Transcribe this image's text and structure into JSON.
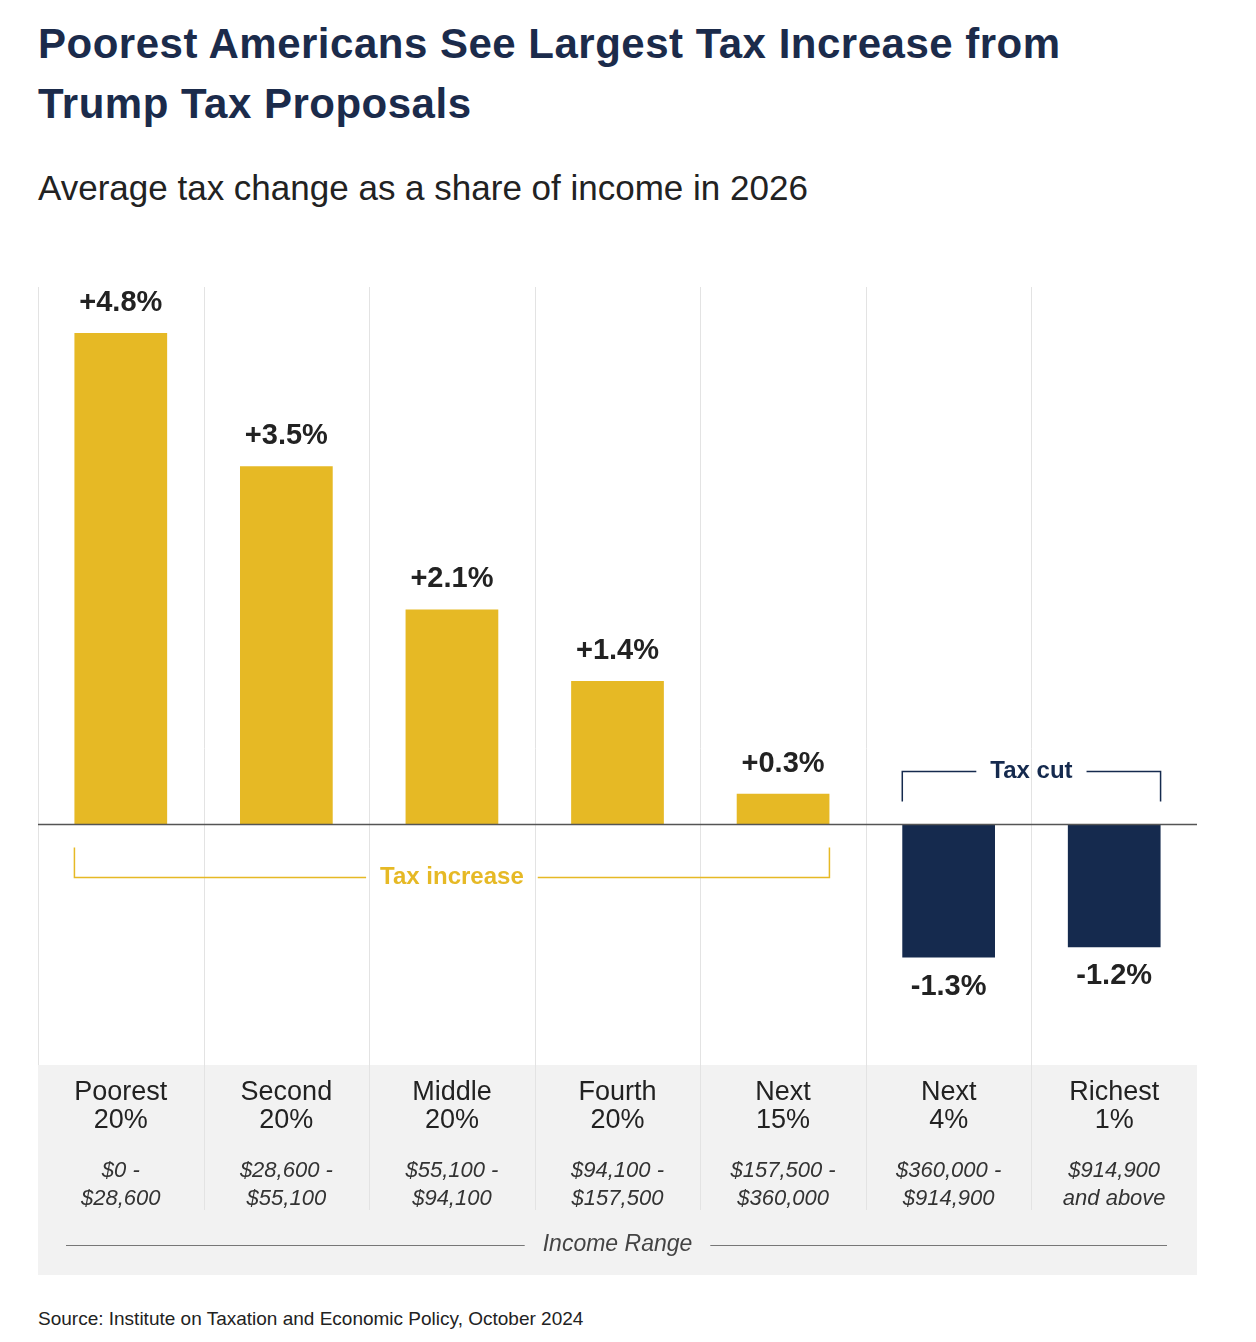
{
  "chart_data": {
    "type": "bar",
    "title": "Poorest Americans See Largest Tax Increase from Trump Tax Proposals",
    "subtitle": "Average tax change as a share of income in 2026",
    "categories": [
      "Poorest 20%",
      "Second 20%",
      "Middle 20%",
      "Fourth 20%",
      "Next 15%",
      "Next 4%",
      "Richest 1%"
    ],
    "income_ranges": [
      "$0 - $28,600",
      "$28,600 - $55,100",
      "$55,100 - $94,100",
      "$94,100 - $157,500",
      "$157,500 - $360,000",
      "$360,000 - $914,900",
      "$914,900 and above"
    ],
    "x_label": "Income Range",
    "values": [
      4.8,
      3.5,
      2.1,
      1.4,
      0.3,
      -1.3,
      -1.2
    ],
    "value_labels": [
      "+4.8%",
      "+3.5%",
      "+2.1%",
      "+1.4%",
      "+0.3%",
      "-1.3%",
      "-1.2%"
    ],
    "colors": [
      "#e6b925",
      "#e6b925",
      "#e6b925",
      "#e6b925",
      "#e6b925",
      "#152a4e",
      "#152a4e"
    ],
    "ylim": [
      -2.35,
      5.25
    ],
    "yticks": [
      0
    ],
    "grid": true,
    "data_labels": true,
    "tick_labels": "x",
    "annotations": [
      {
        "text": "Tax increase",
        "from": "Poorest 20%",
        "to": "Next 15%"
      },
      {
        "text": "Tax cut",
        "from": "Next 4%",
        "to": "Richest 1%"
      }
    ],
    "source": "Source: Institute on Taxation and Economic Policy, October 2024"
  }
}
